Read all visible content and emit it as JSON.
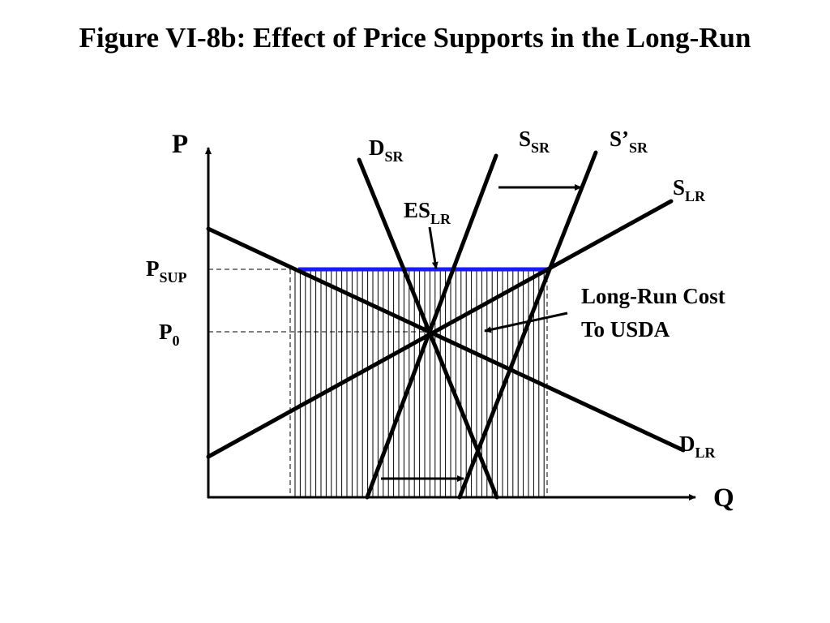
{
  "title": "Figure VI-8b: Effect of Price Supports in the Long-Run",
  "axes": {
    "y": "P",
    "x": "Q"
  },
  "price_labels": [
    {
      "main": "P",
      "sub": "SUP"
    },
    {
      "main": "P",
      "sub": "0"
    }
  ],
  "curve_labels": [
    {
      "main": "D",
      "sub": "SR"
    },
    {
      "main": "S",
      "sub": "SR"
    },
    {
      "main": "S’",
      "sub": "SR"
    },
    {
      "main": "S",
      "sub": "LR"
    },
    {
      "main": "ES",
      "sub": "LR"
    },
    {
      "main": "D",
      "sub": "LR"
    }
  ],
  "annotation": [
    "Long-Run Cost",
    "To USDA"
  ]
}
